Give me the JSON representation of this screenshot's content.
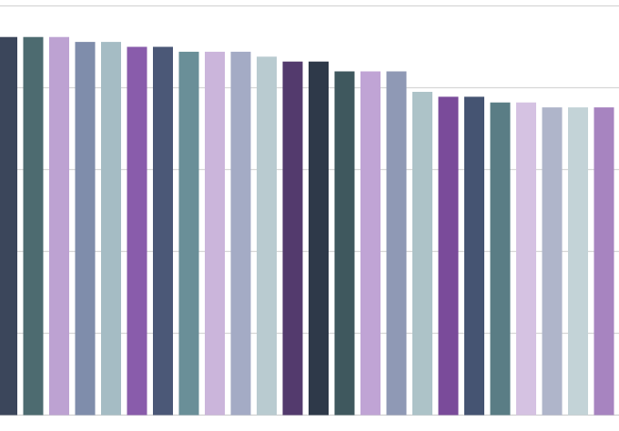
{
  "chart_data": {
    "type": "bar",
    "title": "",
    "xlabel": "",
    "ylabel": "",
    "ylim": [
      0,
      5
    ],
    "grid": true,
    "legend": "none",
    "categories": [
      "",
      "",
      "",
      "",
      "",
      "",
      "",
      "",
      "",
      "",
      "",
      "",
      "",
      "",
      "",
      "",
      "",
      "",
      "",
      "",
      "",
      "",
      "",
      ""
    ],
    "values": [
      4.62,
      4.62,
      4.62,
      4.56,
      4.56,
      4.5,
      4.5,
      4.44,
      4.44,
      4.44,
      4.38,
      4.32,
      4.32,
      4.2,
      4.2,
      4.2,
      3.95,
      3.89,
      3.89,
      3.82,
      3.82,
      3.76,
      3.76,
      3.76
    ],
    "colors": [
      "#3b465b",
      "#4d6b70",
      "#bda2d2",
      "#7f8dab",
      "#a5bcc4",
      "#895cab",
      "#4b5877",
      "#6a8f98",
      "#cbb5db",
      "#a4abc5",
      "#b9cbd0",
      "#533a6d",
      "#2e3949",
      "#3f585e",
      "#c0a4d5",
      "#8f99b5",
      "#adc3c8",
      "#7a4b9a",
      "#455472",
      "#5a7d85",
      "#d5c2e2",
      "#afb5ca",
      "#c3d3d7",
      "#a784c0"
    ]
  }
}
